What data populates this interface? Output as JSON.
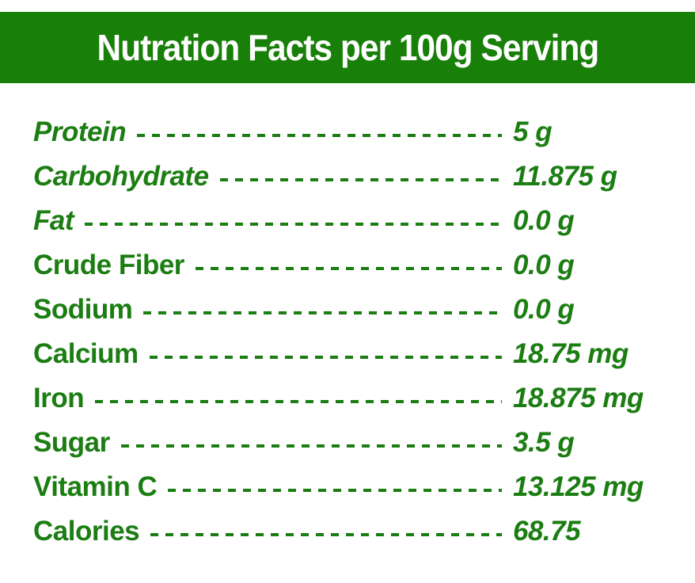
{
  "title": "Nutration Facts per 100g Serving",
  "colors": {
    "header_bg": "#188008",
    "header_text": "#ffffff",
    "text_green": "#1B7D12",
    "background": "#ffffff"
  },
  "rows": [
    {
      "label": "Protein",
      "value": "5 g"
    },
    {
      "label": "Carbohydrate",
      "value": "11.875 g"
    },
    {
      "label": "Fat",
      "value": "0.0 g"
    },
    {
      "label": "Crude Fiber",
      "value": "0.0 g"
    },
    {
      "label": "Sodium",
      "value": "0.0 g"
    },
    {
      "label": "Calcium",
      "value": "18.75 mg"
    },
    {
      "label": "Iron",
      "value": "18.875 mg"
    },
    {
      "label": "Sugar",
      "value": "3.5 g"
    },
    {
      "label": "Vitamin C",
      "value": "13.125 mg"
    },
    {
      "label": "Calories",
      "value": "68.75"
    }
  ]
}
